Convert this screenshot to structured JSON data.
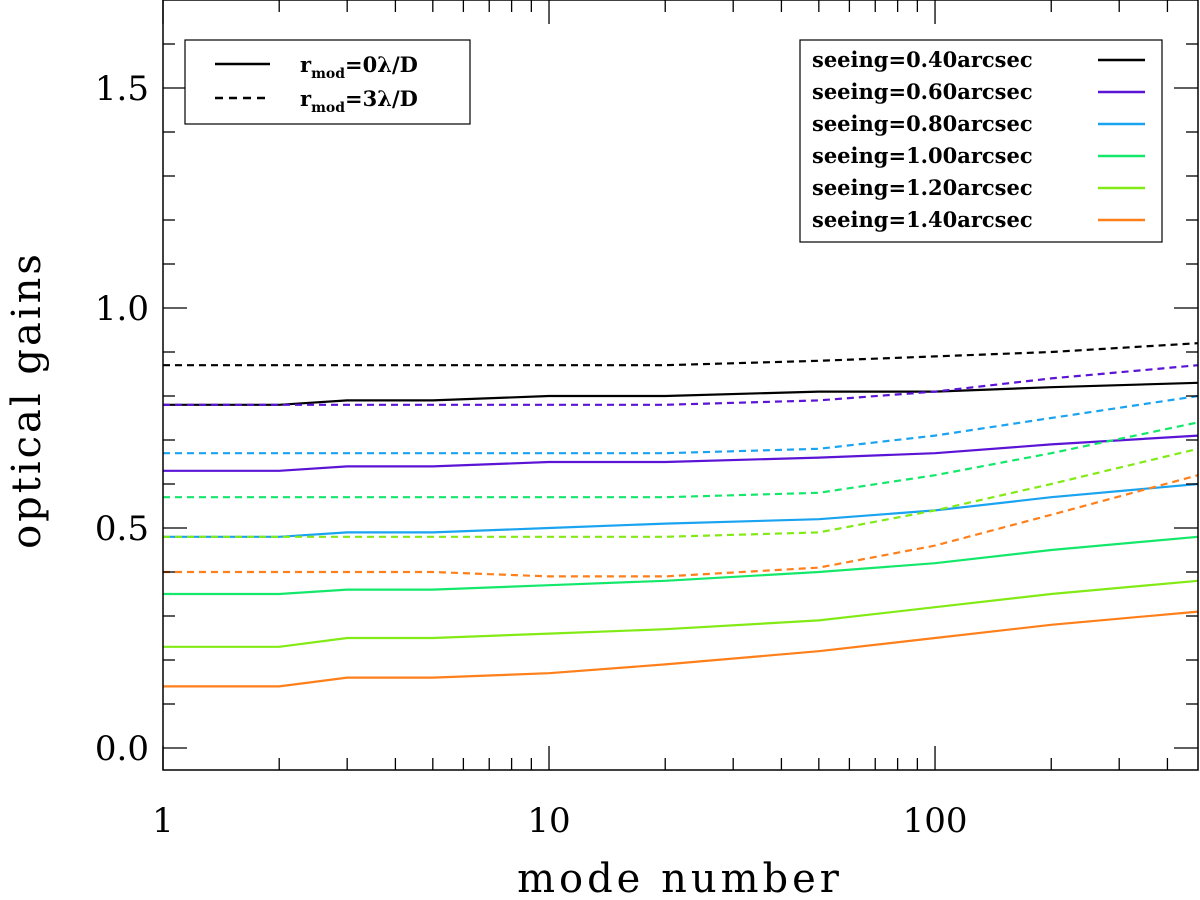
{
  "chart_data": {
    "type": "line",
    "xscale": "log",
    "xlabel": "mode number",
    "ylabel": "optical gains",
    "xlim": [
      1,
      480
    ],
    "ylim": [
      -0.05,
      1.7
    ],
    "x_ticks": [
      {
        "value": 1,
        "label": "1"
      },
      {
        "value": 10,
        "label": "10"
      },
      {
        "value": 100,
        "label": "100"
      }
    ],
    "y_ticks": [
      {
        "value": 0.0,
        "label": "0.0"
      },
      {
        "value": 0.5,
        "label": "0.5"
      },
      {
        "value": 1.0,
        "label": "1.0"
      },
      {
        "value": 1.5,
        "label": "1.5"
      }
    ],
    "grid": false,
    "style_legend": {
      "placement": "top-left",
      "entries": [
        {
          "style": "solid",
          "base": "r",
          "sub": "mod",
          "rest": "=0λ/D"
        },
        {
          "style": "dashed",
          "base": "r",
          "sub": "mod",
          "rest": "=3λ/D"
        }
      ]
    },
    "color_legend": {
      "placement": "top-right",
      "entries": [
        {
          "label": "seeing=0.40arcsec",
          "color": "#000000"
        },
        {
          "label": "seeing=0.60arcsec",
          "color": "#5b14d6"
        },
        {
          "label": "seeing=0.80arcsec",
          "color": "#1aa3f0"
        },
        {
          "label": "seeing=1.00arcsec",
          "color": "#14e86b"
        },
        {
          "label": "seeing=1.20arcsec",
          "color": "#82ea14"
        },
        {
          "label": "seeing=1.40arcsec",
          "color": "#ff7f1a"
        }
      ]
    },
    "x": [
      1,
      2,
      3,
      5,
      10,
      20,
      50,
      100,
      200,
      480
    ],
    "series": [
      {
        "seeing": "0.40",
        "color": "#000000",
        "style": "solid",
        "values": [
          0.78,
          0.78,
          0.79,
          0.79,
          0.8,
          0.8,
          0.81,
          0.81,
          0.82,
          0.83
        ]
      },
      {
        "seeing": "0.40",
        "color": "#000000",
        "style": "dashed",
        "values": [
          0.87,
          0.87,
          0.87,
          0.87,
          0.87,
          0.87,
          0.88,
          0.89,
          0.9,
          0.92
        ]
      },
      {
        "seeing": "0.60",
        "color": "#5b14d6",
        "style": "solid",
        "values": [
          0.63,
          0.63,
          0.64,
          0.64,
          0.65,
          0.65,
          0.66,
          0.67,
          0.69,
          0.71
        ]
      },
      {
        "seeing": "0.60",
        "color": "#5b14d6",
        "style": "dashed",
        "values": [
          0.78,
          0.78,
          0.78,
          0.78,
          0.78,
          0.78,
          0.79,
          0.81,
          0.84,
          0.87
        ]
      },
      {
        "seeing": "0.80",
        "color": "#1aa3f0",
        "style": "solid",
        "values": [
          0.48,
          0.48,
          0.49,
          0.49,
          0.5,
          0.51,
          0.52,
          0.54,
          0.57,
          0.6
        ]
      },
      {
        "seeing": "0.80",
        "color": "#1aa3f0",
        "style": "dashed",
        "values": [
          0.67,
          0.67,
          0.67,
          0.67,
          0.67,
          0.67,
          0.68,
          0.71,
          0.75,
          0.8
        ]
      },
      {
        "seeing": "1.00",
        "color": "#14e86b",
        "style": "solid",
        "values": [
          0.35,
          0.35,
          0.36,
          0.36,
          0.37,
          0.38,
          0.4,
          0.42,
          0.45,
          0.48
        ]
      },
      {
        "seeing": "1.00",
        "color": "#14e86b",
        "style": "dashed",
        "values": [
          0.57,
          0.57,
          0.57,
          0.57,
          0.57,
          0.57,
          0.58,
          0.62,
          0.67,
          0.74
        ]
      },
      {
        "seeing": "1.20",
        "color": "#82ea14",
        "style": "solid",
        "values": [
          0.23,
          0.23,
          0.25,
          0.25,
          0.26,
          0.27,
          0.29,
          0.32,
          0.35,
          0.38
        ]
      },
      {
        "seeing": "1.20",
        "color": "#82ea14",
        "style": "dashed",
        "values": [
          0.48,
          0.48,
          0.48,
          0.48,
          0.48,
          0.48,
          0.49,
          0.54,
          0.6,
          0.68
        ]
      },
      {
        "seeing": "1.40",
        "color": "#ff7f1a",
        "style": "solid",
        "values": [
          0.14,
          0.14,
          0.16,
          0.16,
          0.17,
          0.19,
          0.22,
          0.25,
          0.28,
          0.31
        ]
      },
      {
        "seeing": "1.40",
        "color": "#ff7f1a",
        "style": "dashed",
        "values": [
          0.4,
          0.4,
          0.4,
          0.4,
          0.39,
          0.39,
          0.41,
          0.46,
          0.53,
          0.62
        ]
      }
    ]
  }
}
